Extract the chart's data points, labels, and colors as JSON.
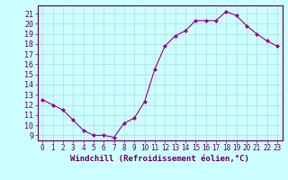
{
  "x": [
    0,
    1,
    2,
    3,
    4,
    5,
    6,
    7,
    8,
    9,
    10,
    11,
    12,
    13,
    14,
    15,
    16,
    17,
    18,
    19,
    20,
    21,
    22,
    23
  ],
  "y": [
    12.5,
    12.0,
    11.5,
    10.5,
    9.5,
    9.0,
    9.0,
    8.8,
    10.2,
    10.7,
    12.3,
    15.5,
    17.8,
    18.8,
    19.3,
    20.3,
    20.3,
    20.3,
    21.2,
    20.8,
    19.8,
    19.0,
    18.3,
    17.8
  ],
  "line_color": "#990099",
  "marker": "D",
  "marker_size": 2,
  "background_color": "#ccffff",
  "grid_color": "#aadddd",
  "xlabel": "Windchill (Refroidissement éolien,°C)",
  "xlabel_color": "#660066",
  "ylabel_ticks": [
    9,
    10,
    11,
    12,
    13,
    14,
    15,
    16,
    17,
    18,
    19,
    20,
    21
  ],
  "xtick_labels": [
    "0",
    "1",
    "2",
    "3",
    "4",
    "5",
    "6",
    "7",
    "8",
    "9",
    "10",
    "11",
    "12",
    "13",
    "14",
    "15",
    "16",
    "17",
    "18",
    "19",
    "20",
    "21",
    "22",
    "23"
  ],
  "ylim": [
    8.5,
    21.8
  ],
  "xlim": [
    -0.5,
    23.5
  ],
  "tick_color": "#660066",
  "spine_color": "#660066",
  "xlabel_fontsize": 6.5,
  "tick_fontsize": 5.5,
  "ytick_fontsize": 6.0
}
